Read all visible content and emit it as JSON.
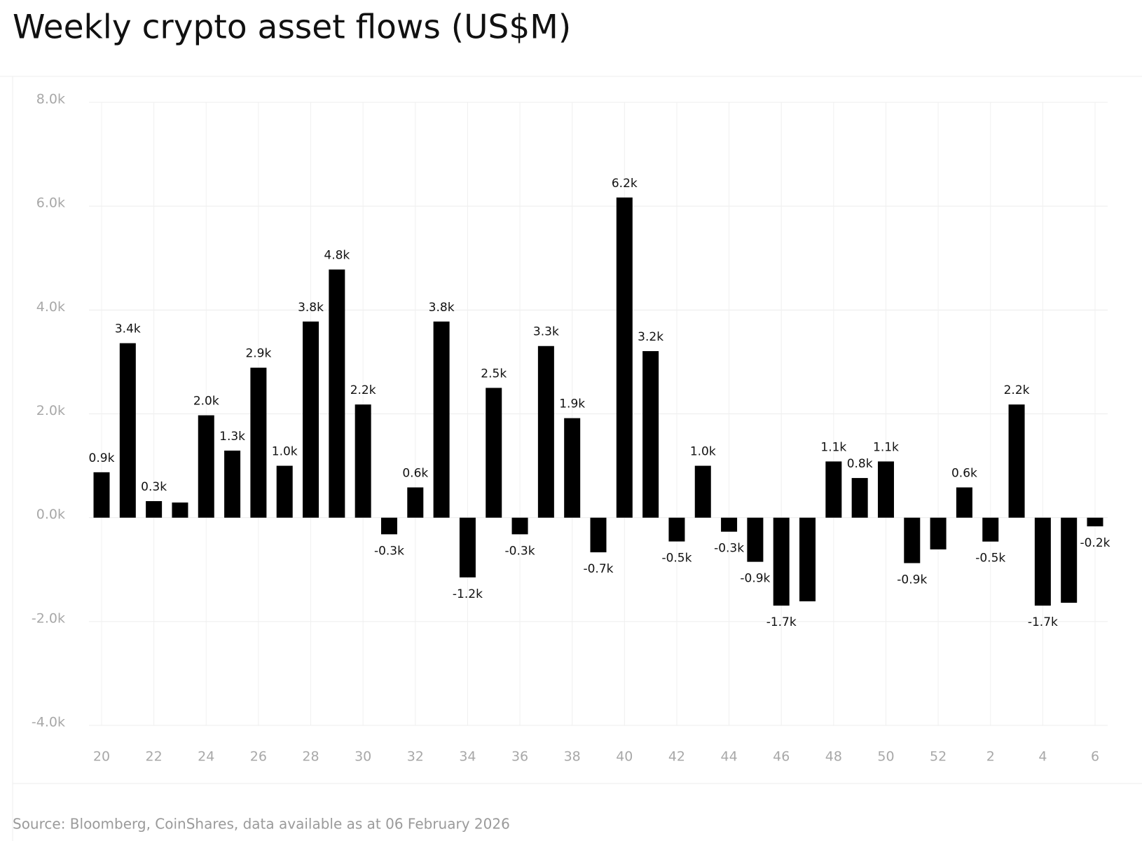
{
  "chart_data": {
    "type": "bar",
    "title": "Weekly crypto asset flows (US$M)",
    "source": "Source: Bloomberg, CoinShares, data available as at 06 February 2026",
    "categories": [
      "20",
      null,
      "22",
      null,
      "24",
      null,
      "26",
      null,
      "28",
      null,
      "30",
      null,
      "32",
      null,
      "34",
      null,
      "36",
      null,
      "38",
      null,
      "40",
      null,
      "42",
      null,
      "44",
      null,
      "46",
      null,
      "48",
      null,
      "50",
      null,
      "52",
      null,
      "2",
      null,
      "4",
      null,
      "6"
    ],
    "values": [
      875,
      3361,
      319,
      292,
      1972,
      1292,
      2889,
      1000,
      3778,
      4780,
      2180,
      -320,
      583,
      3778,
      -1150,
      2500,
      -320,
      3306,
      1917,
      -667,
      6167,
      3208,
      -458,
      1000,
      -270,
      -850,
      -1694,
      -1611,
      1083,
      764,
      1083,
      -875,
      -611,
      583,
      -460,
      2180,
      -1694,
      -1639,
      -167
    ],
    "value_labels": [
      "0.9k",
      "3.4k",
      "0.3k",
      null,
      "2.0k",
      "1.3k",
      "2.9k",
      "1.0k",
      "3.8k",
      "4.8k",
      "2.2k",
      "-0.3k",
      "0.6k",
      "3.8k",
      "-1.2k",
      "2.5k",
      "-0.3k",
      "3.3k",
      "1.9k",
      "-0.7k",
      "6.2k",
      "3.2k",
      "-0.5k",
      "1.0k",
      "-0.3k",
      "-0.9k",
      "-1.7k",
      null,
      "1.1k",
      "0.8k",
      "1.1k",
      "-0.9k",
      null,
      "0.6k",
      "-0.5k",
      "2.2k",
      "-1.7k",
      null,
      "-0.2k"
    ],
    "color": "#000000",
    "ylim": [
      -4000,
      8000
    ],
    "yticks": [
      {
        "value": -4000,
        "label": "-4.0k"
      },
      {
        "value": -2000,
        "label": "-2.0k"
      },
      {
        "value": 0,
        "label": "0.0k"
      },
      {
        "value": 2000,
        "label": "2.0k"
      },
      {
        "value": 4000,
        "label": "4.0k"
      },
      {
        "value": 6000,
        "label": "6.0k"
      },
      {
        "value": 8000,
        "label": "8.0k"
      }
    ],
    "grid": true
  }
}
